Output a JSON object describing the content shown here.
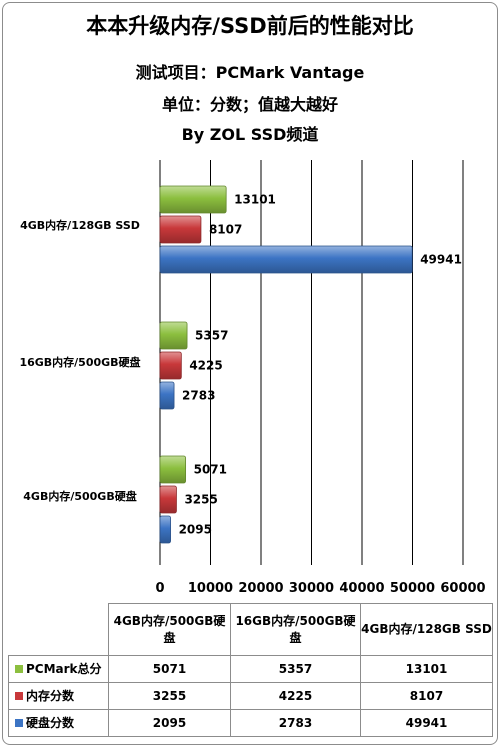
{
  "titles": {
    "main": "本本升级内存/SSD前后的性能对比",
    "line2": "测试项目：PCMark Vantage",
    "line3": "单位：分数；值越大越好",
    "line4": "By ZOL SSD频道"
  },
  "chart_data": {
    "type": "bar",
    "orientation": "horizontal",
    "categories": [
      "4GB内存/128GB  SSD",
      "16GB内存/500GB硬盘",
      "4GB内存/500GB硬盘"
    ],
    "table_categories": [
      "4GB内存/500GB硬盘",
      "16GB内存/500GB硬盘",
      "4GB内存/128GB SSD"
    ],
    "series": [
      {
        "name": "PCMark总分",
        "color": "#8cbf3f",
        "values": [
          13101,
          5357,
          5071
        ]
      },
      {
        "name": "内存分数",
        "color": "#c8383a",
        "values": [
          8107,
          4225,
          3255
        ]
      },
      {
        "name": "硬盘分数",
        "color": "#3c74c4",
        "values": [
          49941,
          2783,
          2095
        ]
      }
    ],
    "xlim": [
      0,
      60000
    ],
    "xticks": [
      "0",
      "10000",
      "20000",
      "30000",
      "40000",
      "50000",
      "60000"
    ],
    "grid": true,
    "legend": "data-table-below"
  }
}
